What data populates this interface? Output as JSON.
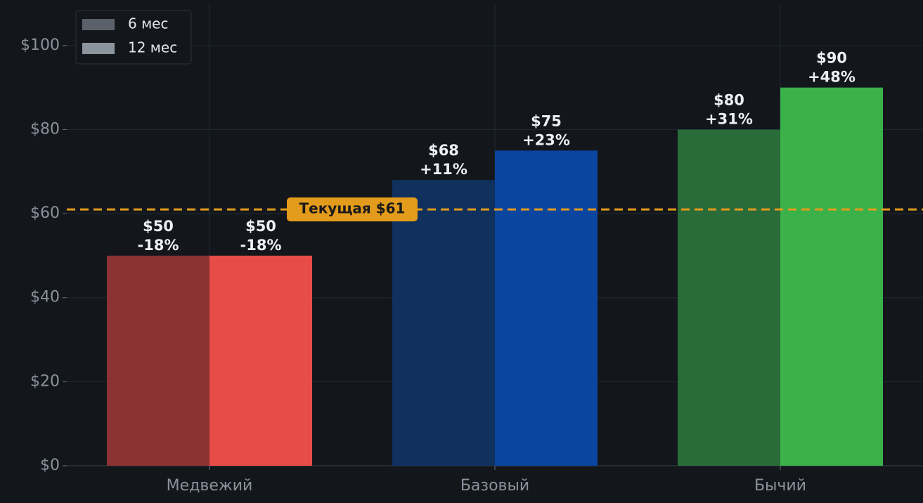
{
  "chart_data": {
    "type": "bar",
    "categories": [
      "Медвежий",
      "Базовый",
      "Бычий"
    ],
    "series": [
      {
        "name": "6 мес",
        "color": "#5b616b",
        "bar_colors": [
          "#8b3234",
          "#10305e",
          "#2a6b3a"
        ],
        "values": [
          50,
          68,
          80
        ],
        "value_labels": [
          "$50",
          "$68",
          "$80"
        ],
        "change_labels": [
          "-18%",
          "+11%",
          "+31%"
        ]
      },
      {
        "name": "12 мес",
        "color": "#8c949e",
        "bar_colors": [
          "#e84c48",
          "#0a45a0",
          "#3bb14a"
        ],
        "values": [
          50,
          75,
          90
        ],
        "value_labels": [
          "$50",
          "$75",
          "$90"
        ],
        "change_labels": [
          "-18%",
          "+23%",
          "+48%"
        ]
      }
    ],
    "reference_line": {
      "value": 61,
      "label": "Текущая $61",
      "color": "#e39b1b"
    },
    "ylim": [
      0,
      110
    ],
    "yticks": [
      {
        "value": 0,
        "label": "$0"
      },
      {
        "value": 20,
        "label": "$20"
      },
      {
        "value": 40,
        "label": "$40"
      },
      {
        "value": 60,
        "label": "$60"
      },
      {
        "value": 80,
        "label": "$80"
      },
      {
        "value": 100,
        "label": "$100"
      }
    ],
    "grid": true,
    "legend": "upper left"
  }
}
